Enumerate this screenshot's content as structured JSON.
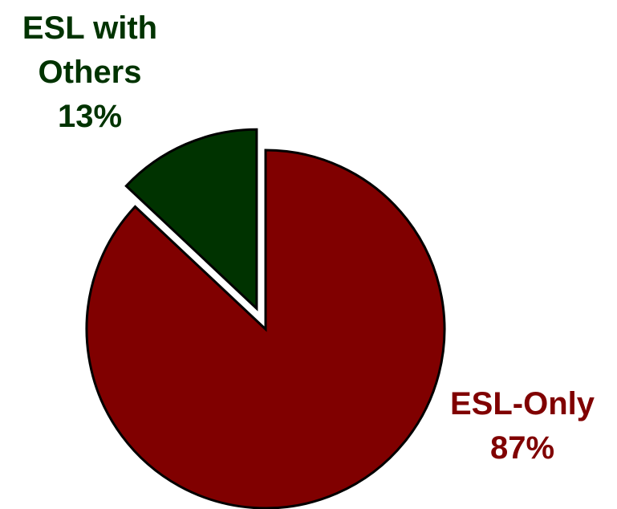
{
  "chart_data": {
    "type": "pie",
    "title": "",
    "slices": [
      {
        "name": "ESL-Only",
        "value": 87,
        "label_lines": [
          "ESL-Only",
          "87%"
        ],
        "color": "#800000"
      },
      {
        "name": "ESL with Others",
        "value": 13,
        "label_lines": [
          "ESL with",
          "Others",
          "13%"
        ],
        "color": "#003300"
      }
    ],
    "exploded_slice": "ESL with Others",
    "label_colors": {
      "ESL-Only": "#800000",
      "ESL with Others": "#003300"
    },
    "outline_color": "#000000"
  }
}
